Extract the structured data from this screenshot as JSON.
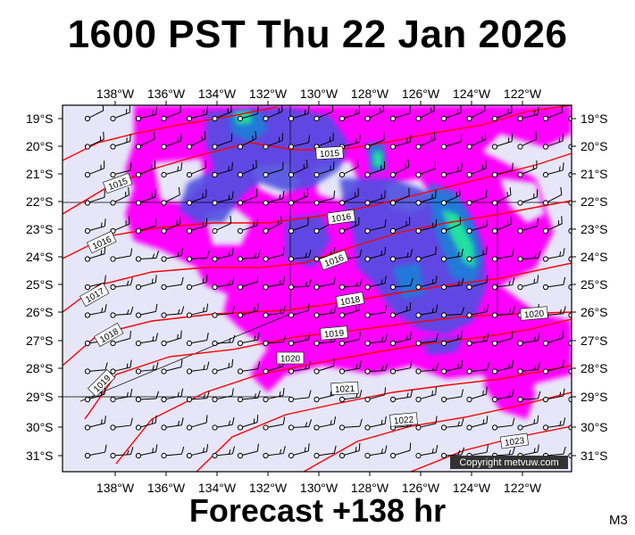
{
  "title": "1600 PST Thu 22 Jan 2026",
  "footer": "Forecast +138 hr",
  "model_code": "M3",
  "copyright": "Copyright metvuw.com",
  "longitude_labels": [
    "138°W",
    "136°W",
    "134°W",
    "132°W",
    "130°W",
    "128°W",
    "126°W",
    "124°W",
    "122°W"
  ],
  "latitude_labels": [
    "19°S",
    "20°S",
    "21°S",
    "22°S",
    "23°S",
    "24°S",
    "25°S",
    "26°S",
    "27°S",
    "28°S",
    "29°S",
    "30°S",
    "31°S"
  ],
  "isobar_labels": [
    "1015",
    "1015",
    "1016",
    "1016",
    "1016",
    "1017",
    "1018",
    "1018",
    "1019",
    "1019",
    "1020",
    "1020",
    "1021",
    "1022",
    "1023"
  ],
  "colors": {
    "background": "#e6e6f8",
    "rain_light": "#ff00ff",
    "rain_moderate": "#5050e0",
    "rain_heavy": "#1e7fd8",
    "rain_extreme": "#20e0a0",
    "isobar": "#ff0000",
    "frame": "#000000"
  }
}
